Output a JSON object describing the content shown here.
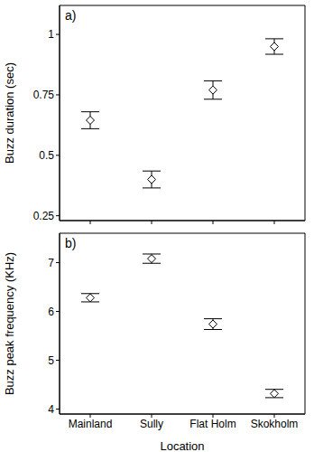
{
  "chart_data": [
    {
      "type": "scatter",
      "title": "a)",
      "categories": [
        "Mainland",
        "Sully",
        "Flat Holm",
        "Skokholm"
      ],
      "values": [
        0.645,
        0.4,
        0.77,
        0.95
      ],
      "errors": [
        0.035,
        0.035,
        0.038,
        0.032
      ],
      "ylabel": "Buzz duration (sec)",
      "ylim": [
        0.23,
        1.12
      ],
      "yticks": [
        0.25,
        0.5,
        0.75,
        1
      ],
      "marker": "diamond",
      "color": "#000000",
      "tick_labels": "y"
    },
    {
      "type": "scatter",
      "title": "b)",
      "categories": [
        "Mainland",
        "Sully",
        "Flat Holm",
        "Skokholm"
      ],
      "values": [
        6.28,
        7.08,
        5.74,
        4.32
      ],
      "errors": [
        0.085,
        0.095,
        0.11,
        0.085
      ],
      "xlabel": "Location",
      "ylabel": "Buzz peak frequency (KHz)",
      "ylim": [
        3.9,
        7.6
      ],
      "yticks": [
        4,
        5,
        6,
        7
      ],
      "marker": "diamond",
      "color": "#000000"
    }
  ]
}
